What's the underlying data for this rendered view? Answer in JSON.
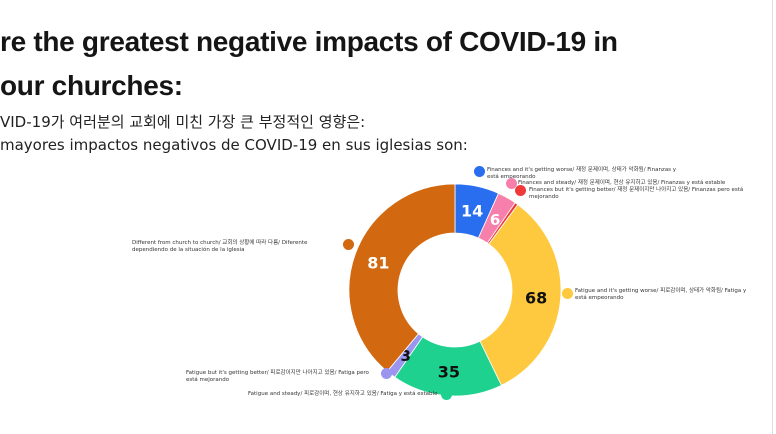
{
  "header": {
    "title_line1": "re the greatest negative impacts of COVID-19 in",
    "title_line2": "our churches:",
    "korean": "VID-19가 여러분의 교회에 미친 가장 큰 부정적인 영향은:",
    "spanish": "mayores impactos negativos de COVID-19 en sus iglesias son:"
  },
  "chart_data": {
    "type": "pie",
    "variant": "donut",
    "series": [
      {
        "name": "Finances and it's getting worse/ 재정 문제이며, 상태가 악화됨/ Finanzas y está empeorando",
        "value": 14,
        "color": "#2a6ef0"
      },
      {
        "name": "Finances and steady/ 재정 문제이며, 현상 유지하고 있음/ Finanzas y está estable",
        "value": 6,
        "color": "#f77fab"
      },
      {
        "name": "Finances but it's getting better/ 재정 문제이지만 나아지고 있음/ Finanzas pero está mejorando",
        "value": 1,
        "color": "#f03a3a"
      },
      {
        "name": "Fatigue and it's getting worse/ 피로감이며, 상태가 악화됨/ Fatiga y está empeorando",
        "value": 68,
        "color": "#ffc93f"
      },
      {
        "name": "Fatigue and steady/ 피로감이며, 현상 유지하고 있음/ Fatiga y está estable",
        "value": 35,
        "color": "#1ed18f"
      },
      {
        "name": "Fatigue but it's getting better/ 피로감이지만 나아지고 있음/ Fatiga pero está mejorando",
        "value": 3,
        "color": "#9b95f0"
      },
      {
        "name": "Different from church to church/ 교회의 상황에 따라 다름/ Diferente dependiendo de la situación de la iglesia",
        "value": 81,
        "color": "#d2680f"
      }
    ]
  }
}
